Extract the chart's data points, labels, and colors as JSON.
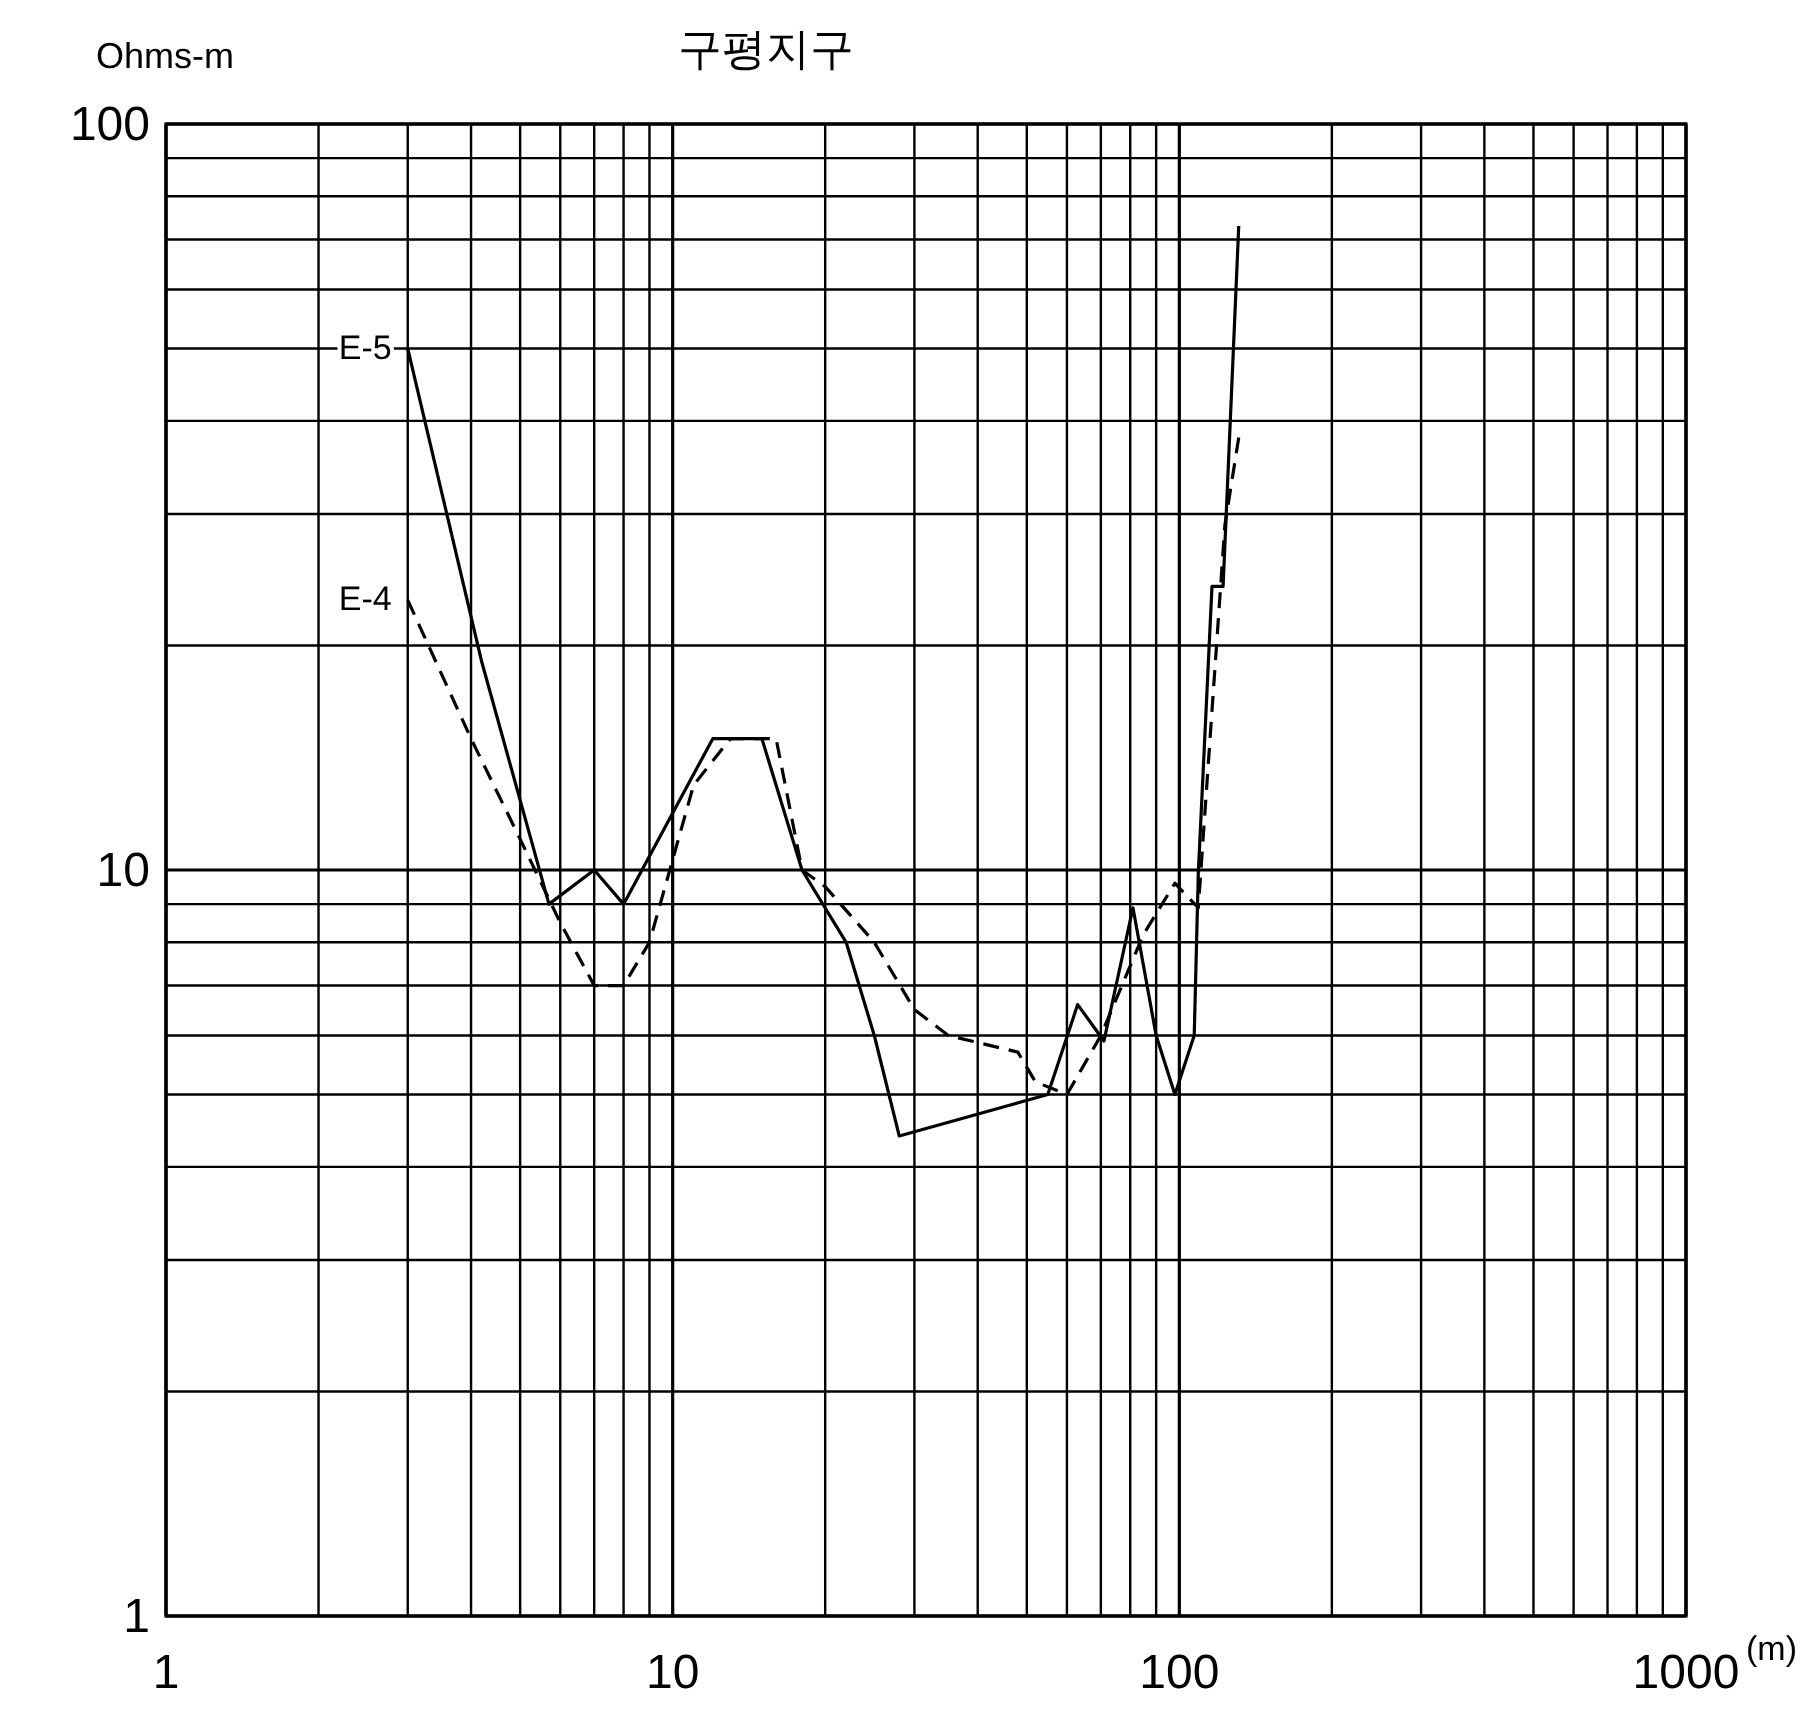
{
  "chart_data": {
    "type": "line",
    "title": "구평지구",
    "xlabel": "(m)",
    "ylabel": "Ohms-m",
    "log": "xy",
    "grid": true,
    "marker": "none",
    "xlim": [
      1,
      1000
    ],
    "ylim": [
      1,
      100
    ],
    "xticks": [
      1,
      {
        "value": 2,
        "label": null
      },
      {
        "value": 3,
        "label": null
      },
      {
        "value": 4,
        "label": null
      },
      {
        "value": 5,
        "label": null
      },
      {
        "value": 6,
        "label": null
      },
      {
        "value": 7,
        "label": null
      },
      {
        "value": 8,
        "label": null
      },
      {
        "value": 9,
        "label": null
      },
      10,
      {
        "value": 20,
        "label": null
      },
      {
        "value": 30,
        "label": null
      },
      {
        "value": 40,
        "label": null
      },
      {
        "value": 50,
        "label": null
      },
      {
        "value": 60,
        "label": null
      },
      {
        "value": 70,
        "label": null
      },
      {
        "value": 80,
        "label": null
      },
      {
        "value": 90,
        "label": null
      },
      100,
      {
        "value": 200,
        "label": null
      },
      {
        "value": 300,
        "label": null
      },
      {
        "value": 400,
        "label": null
      },
      {
        "value": 500,
        "label": null
      },
      {
        "value": 600,
        "label": null
      },
      {
        "value": 700,
        "label": null
      },
      {
        "value": 800,
        "label": null
      },
      {
        "value": 900,
        "label": null
      },
      1000
    ],
    "yticks": [
      1,
      {
        "value": 2,
        "label": null
      },
      {
        "value": 3,
        "label": null
      },
      {
        "value": 4,
        "label": null
      },
      {
        "value": 5,
        "label": null
      },
      {
        "value": 6,
        "label": null
      },
      {
        "value": 7,
        "label": null
      },
      {
        "value": 8,
        "label": null
      },
      {
        "value": 9,
        "label": null
      },
      10,
      {
        "value": 20,
        "label": null
      },
      {
        "value": 30,
        "label": null
      },
      {
        "value": 40,
        "label": null
      },
      {
        "value": 50,
        "label": null
      },
      {
        "value": 60,
        "label": null
      },
      {
        "value": 70,
        "label": null
      },
      {
        "value": 80,
        "label": null
      },
      {
        "value": 90,
        "label": null
      },
      100
    ],
    "series": [
      {
        "name": "E-5",
        "color": "#000000",
        "line_style": "solid",
        "x": [
          3,
          4.2,
          5.7,
          7,
          8,
          12,
          15,
          18,
          22,
          25,
          28,
          55,
          63,
          71,
          81,
          90,
          98,
          107,
          109,
          116,
          122,
          131
        ],
        "values": [
          50,
          19,
          9,
          10,
          9,
          15,
          15,
          10,
          8,
          6,
          4.4,
          5,
          6.6,
          5.9,
          8.9,
          6,
          5,
          6,
          9.9,
          24,
          24,
          73
        ]
      },
      {
        "name": "E-4",
        "color": "#000000",
        "line_style": "dashed",
        "x": [
          3,
          4,
          5,
          6,
          7,
          8,
          9,
          11,
          13,
          16,
          18,
          20,
          25,
          30,
          35,
          48,
          52,
          60,
          70,
          85,
          98,
          109,
          123,
          131
        ],
        "values": [
          23,
          15,
          11,
          8.5,
          7,
          7,
          8,
          13,
          15,
          15,
          10,
          9.5,
          8,
          6.5,
          6,
          5.7,
          5.2,
          5,
          6,
          8.2,
          9.6,
          8.9,
          29,
          38
        ]
      }
    ]
  }
}
